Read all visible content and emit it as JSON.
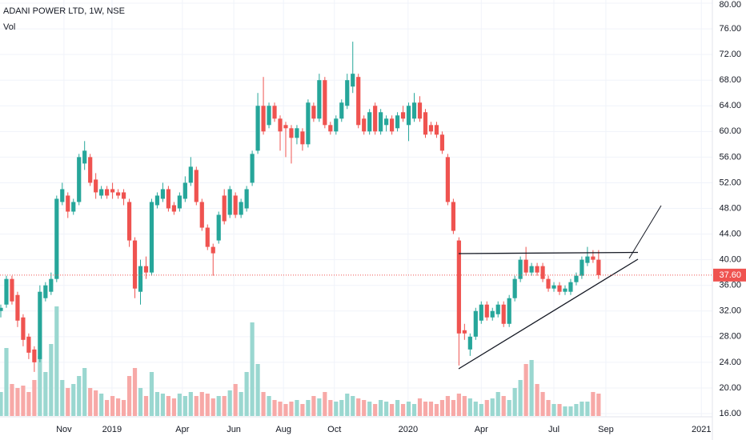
{
  "chart_data": {
    "type": "candlestick",
    "title": "ADANI POWER LTD, 1W, NSE",
    "volume_label": "Vol",
    "up_color": "#26a69a",
    "down_color": "#ef5350",
    "volume_up_color": "#9ad7d0",
    "volume_down_color": "#f7a9a7",
    "grid": true,
    "ylim": [
      16,
      80
    ],
    "yticks": [
      {
        "value": 16,
        "label": "16.00"
      },
      {
        "value": 20,
        "label": "20.00"
      },
      {
        "value": 24,
        "label": "24.00"
      },
      {
        "value": 28,
        "label": "28.00"
      },
      {
        "value": 32,
        "label": "32.00"
      },
      {
        "value": 36,
        "label": "36.00"
      },
      {
        "value": 40,
        "label": "40.00"
      },
      {
        "value": 44,
        "label": "44.00"
      },
      {
        "value": 48,
        "label": "48.00"
      },
      {
        "value": 52,
        "label": "52.00"
      },
      {
        "value": 56,
        "label": "56.00"
      },
      {
        "value": 60,
        "label": "60.00"
      },
      {
        "value": 64,
        "label": "64.00"
      },
      {
        "value": 68,
        "label": "68.00"
      },
      {
        "value": 72,
        "label": "72.00"
      },
      {
        "value": 76,
        "label": "76.00"
      },
      {
        "value": 80,
        "label": "80.00"
      }
    ],
    "last_price": {
      "value": 37.6,
      "label": "37.60"
    },
    "x_labels": [
      {
        "label": "Nov",
        "index": 11.3
      },
      {
        "label": "2019",
        "index": 19.9
      },
      {
        "label": "Apr",
        "index": 32.5
      },
      {
        "label": "Jun",
        "index": 41.7
      },
      {
        "label": "Aug",
        "index": 50.6
      },
      {
        "label": "Oct",
        "index": 59.7
      },
      {
        "label": "2020",
        "index": 72.9
      },
      {
        "label": "Apr",
        "index": 86
      },
      {
        "label": "Jul",
        "index": 99
      },
      {
        "label": "Sep",
        "index": 108.3
      },
      {
        "label": "2021",
        "index": 125.4
      }
    ],
    "ohlc": [
      [
        32,
        33,
        31,
        32.5
      ],
      [
        33,
        37.5,
        32.5,
        37
      ],
      [
        37,
        37.5,
        33,
        33.5
      ],
      [
        34.5,
        35,
        29.5,
        30.5
      ],
      [
        31,
        31.5,
        26.5,
        27.5
      ],
      [
        28,
        28.5,
        24.5,
        25.5
      ],
      [
        26,
        26.5,
        22.5,
        24
      ],
      [
        24.5,
        36,
        24,
        35
      ],
      [
        34,
        36.5,
        33.5,
        36
      ],
      [
        35,
        38,
        34.5,
        37
      ],
      [
        37,
        50,
        36.5,
        49.5
      ],
      [
        49,
        52,
        48.5,
        51
      ],
      [
        50,
        50.5,
        46.5,
        47.5
      ],
      [
        47.5,
        49.5,
        47,
        49
      ],
      [
        49,
        56.5,
        48.5,
        56
      ],
      [
        55,
        58.5,
        54,
        57
      ],
      [
        56,
        56.5,
        51.5,
        52
      ],
      [
        52.5,
        53.5,
        49.5,
        50.5
      ],
      [
        50,
        51.5,
        49.5,
        51
      ],
      [
        51,
        51.5,
        49.5,
        50
      ],
      [
        51,
        52,
        49.5,
        50.5
      ],
      [
        50.5,
        51,
        49.5,
        50
      ],
      [
        50.5,
        51,
        48.5,
        49.5
      ],
      [
        49,
        49.5,
        42,
        43
      ],
      [
        43,
        43.5,
        34,
        35.5
      ],
      [
        35,
        40,
        33,
        39
      ],
      [
        39,
        40.5,
        37,
        38
      ],
      [
        38,
        49.5,
        37.5,
        49
      ],
      [
        48.5,
        50.5,
        48,
        50
      ],
      [
        49.5,
        52,
        49,
        51
      ],
      [
        51,
        51.5,
        47.5,
        48
      ],
      [
        48.5,
        49,
        47,
        47.5
      ],
      [
        48,
        50.5,
        47.5,
        50
      ],
      [
        49.5,
        53,
        49,
        52
      ],
      [
        52,
        56,
        51.5,
        54.5
      ],
      [
        54,
        54.5,
        48.5,
        49
      ],
      [
        49,
        49.5,
        44.5,
        45
      ],
      [
        45,
        45.5,
        41.5,
        42
      ],
      [
        42,
        42.5,
        37.5,
        41
      ],
      [
        43,
        47.5,
        42.5,
        47
      ],
      [
        50,
        51,
        45.5,
        46
      ],
      [
        47,
        51.5,
        46.5,
        51
      ],
      [
        50,
        50.5,
        46.5,
        47
      ],
      [
        47,
        49.5,
        46.5,
        49
      ],
      [
        48,
        51.5,
        47.5,
        51
      ],
      [
        52,
        57,
        51.5,
        56.5
      ],
      [
        57,
        66,
        56.5,
        64
      ],
      [
        64,
        68.5,
        59.5,
        60
      ],
      [
        61,
        64.5,
        60.5,
        64
      ],
      [
        64,
        64.5,
        61.5,
        62
      ],
      [
        62,
        62.5,
        57,
        60
      ],
      [
        61,
        61.5,
        56,
        60.5
      ],
      [
        60.5,
        61,
        55,
        59
      ],
      [
        59,
        61,
        58,
        60.5
      ],
      [
        60,
        60.5,
        57,
        58
      ],
      [
        58,
        65,
        57.5,
        64.5
      ],
      [
        64,
        64.5,
        61.5,
        62
      ],
      [
        62,
        69,
        61.5,
        68
      ],
      [
        68,
        68.5,
        60.5,
        61
      ],
      [
        61,
        61.5,
        59.5,
        60
      ],
      [
        60,
        62.5,
        59.5,
        62
      ],
      [
        62,
        65,
        61.5,
        64.5
      ],
      [
        64,
        69,
        63.5,
        68
      ],
      [
        67,
        74,
        66,
        69
      ],
      [
        68.5,
        69,
        60.5,
        61
      ],
      [
        62,
        62.5,
        59.5,
        60
      ],
      [
        60,
        63.5,
        59.5,
        63
      ],
      [
        64,
        64.5,
        59.5,
        60
      ],
      [
        60,
        63.5,
        59.5,
        63
      ],
      [
        61,
        62.5,
        60,
        62
      ],
      [
        62,
        62.5,
        59.5,
        60
      ],
      [
        60.5,
        63,
        60,
        62.5
      ],
      [
        63,
        64,
        61.5,
        62
      ],
      [
        61,
        64.5,
        58.5,
        64
      ],
      [
        62,
        66,
        61.5,
        64.5
      ],
      [
        64.5,
        65.5,
        61.5,
        62
      ],
      [
        63,
        63.5,
        59,
        59.5
      ],
      [
        61,
        61.5,
        59.5,
        60
      ],
      [
        61,
        61.5,
        59,
        59.5
      ],
      [
        59.5,
        60,
        56.5,
        57
      ],
      [
        56,
        56.5,
        48.5,
        49
      ],
      [
        49,
        49.5,
        44,
        44.5
      ],
      [
        43,
        43.5,
        23.5,
        28.5
      ],
      [
        29,
        30,
        27.5,
        28.5
      ],
      [
        26,
        28.5,
        25,
        28
      ],
      [
        28,
        32.5,
        27.5,
        32
      ],
      [
        30.5,
        33.5,
        30,
        33
      ],
      [
        33,
        33.5,
        30.5,
        31
      ],
      [
        31,
        32.5,
        30.5,
        32
      ],
      [
        31.5,
        33.5,
        31,
        33
      ],
      [
        33,
        33.5,
        29.5,
        30
      ],
      [
        30,
        34.5,
        29.5,
        34
      ],
      [
        34,
        37.5,
        33.5,
        37
      ],
      [
        37,
        40.5,
        36.5,
        40
      ],
      [
        40,
        42,
        37.5,
        38
      ],
      [
        38,
        39.5,
        37.5,
        39
      ],
      [
        39,
        39.5,
        37.5,
        38
      ],
      [
        39,
        39.5,
        36.5,
        37
      ],
      [
        37,
        37.5,
        35,
        35.5
      ],
      [
        35.5,
        36.5,
        35,
        36
      ],
      [
        36,
        36.5,
        34.5,
        35
      ],
      [
        35,
        36,
        34.5,
        35.5
      ],
      [
        35,
        37,
        34.5,
        36.5
      ],
      [
        36.5,
        38,
        36,
        37.5
      ],
      [
        37.5,
        40.5,
        37,
        40
      ],
      [
        39.5,
        42,
        39,
        40.5
      ],
      [
        40.5,
        41.5,
        39.5,
        40
      ],
      [
        40,
        41.5,
        37,
        37.6
      ]
    ],
    "volume": [
      30,
      85,
      40,
      35,
      38,
      30,
      45,
      75,
      55,
      90,
      137,
      45,
      35,
      40,
      50,
      60,
      35,
      32,
      28,
      20,
      25,
      22,
      20,
      50,
      60,
      35,
      25,
      55,
      30,
      28,
      25,
      22,
      28,
      25,
      30,
      25,
      30,
      28,
      22,
      25,
      25,
      32,
      40,
      30,
      55,
      117,
      65,
      30,
      25,
      20,
      18,
      15,
      18,
      20,
      15,
      20,
      25,
      22,
      30,
      20,
      18,
      20,
      28,
      25,
      22,
      20,
      18,
      15,
      20,
      18,
      15,
      20,
      15,
      18,
      15,
      22,
      18,
      18,
      15,
      20,
      25,
      20,
      28,
      25,
      22,
      18,
      15,
      20,
      22,
      30,
      25,
      20,
      35,
      45,
      65,
      70,
      40,
      30,
      20,
      15,
      15,
      12,
      12,
      15,
      18,
      18,
      30,
      28
    ]
  }
}
